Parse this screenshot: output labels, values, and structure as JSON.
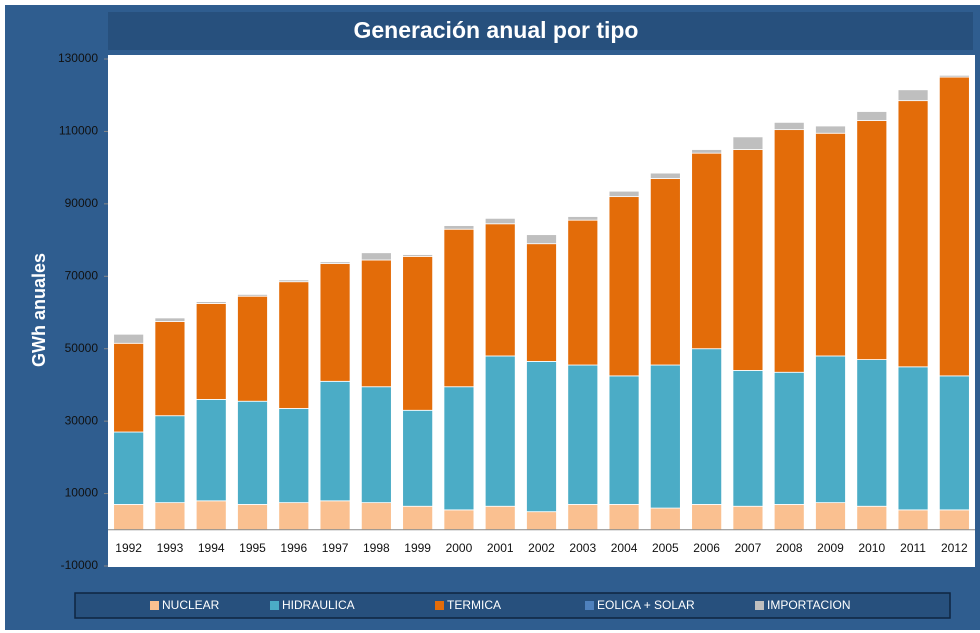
{
  "chart_data": {
    "type": "stacked_bar",
    "title": "Generación anual por tipo",
    "y_label": "GWh anuales",
    "categories": [
      "1992",
      "1993",
      "1994",
      "1995",
      "1996",
      "1997",
      "1998",
      "1999",
      "2000",
      "2001",
      "2002",
      "2003",
      "2004",
      "2005",
      "2006",
      "2007",
      "2008",
      "2009",
      "2010",
      "2011",
      "2012"
    ],
    "series": [
      {
        "name": "NUCLEAR",
        "color": "#fac090",
        "values": [
          7000,
          7500,
          8000,
          7000,
          7500,
          8000,
          7500,
          6500,
          5500,
          6500,
          5000,
          7000,
          7000,
          6000,
          7000,
          6500,
          7000,
          7500,
          6500,
          5500,
          5500
        ]
      },
      {
        "name": "HIDRAULICA",
        "color": "#4bacc6",
        "values": [
          20000,
          24000,
          28000,
          28500,
          26000,
          33000,
          32000,
          26500,
          34000,
          41500,
          41500,
          38500,
          35500,
          39500,
          43000,
          37500,
          36500,
          40500,
          40500,
          39500,
          37000
        ]
      },
      {
        "name": "TERMICA",
        "color": "#e36c09",
        "values": [
          24500,
          26000,
          26500,
          29000,
          35000,
          32500,
          35000,
          42500,
          43500,
          36500,
          32500,
          40000,
          49500,
          51500,
          54000,
          61000,
          67000,
          61500,
          66000,
          73500,
          82500
        ]
      },
      {
        "name": "EOLICA + SOLAR",
        "color": "#4f81bd",
        "values": [
          0,
          0,
          0,
          0,
          0,
          0,
          0,
          0,
          0,
          0,
          0,
          0,
          0,
          0,
          0,
          0,
          0,
          0,
          0,
          0,
          0
        ]
      },
      {
        "name": "IMPORTACION",
        "color": "#bfbfbf",
        "values": [
          2500,
          1000,
          500,
          500,
          500,
          500,
          2000,
          500,
          1000,
          1500,
          2500,
          1000,
          1500,
          1500,
          1000,
          3500,
          2000,
          2000,
          2500,
          3000,
          500
        ]
      }
    ],
    "ylim": [
      -10000,
      130000
    ],
    "yticks": [
      -10000,
      10000,
      30000,
      50000,
      70000,
      90000,
      110000,
      130000
    ],
    "legend": "bottom"
  }
}
